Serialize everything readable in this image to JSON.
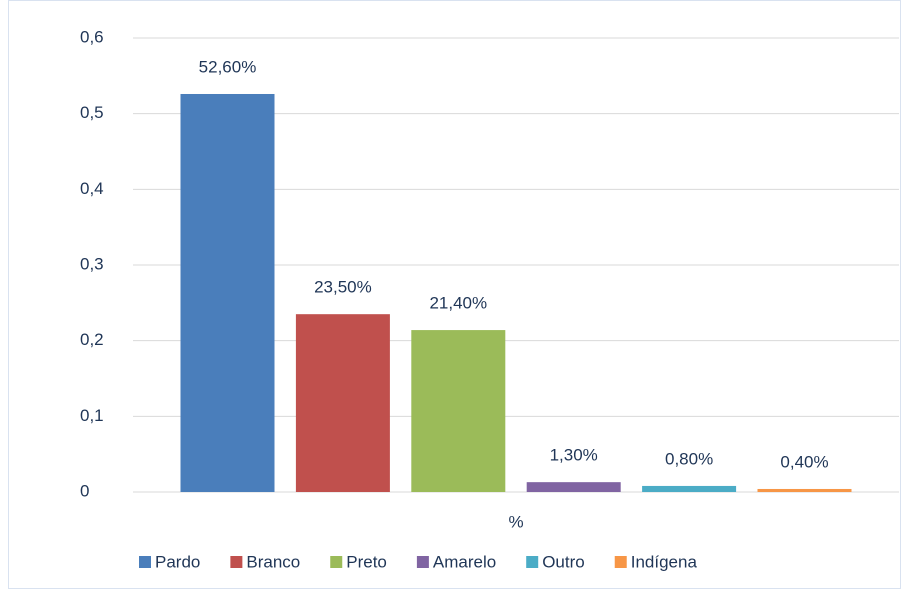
{
  "chart_data": {
    "type": "bar",
    "x_label": "%",
    "categories": [
      "%"
    ],
    "series": [
      {
        "name": "Pardo",
        "color": "#4a7ebb",
        "values": [
          0.526
        ],
        "value_labels": [
          "52,60%"
        ]
      },
      {
        "name": "Branco",
        "color": "#c0504d",
        "values": [
          0.235
        ],
        "value_labels": [
          "23,50%"
        ]
      },
      {
        "name": "Preto",
        "color": "#9bbb59",
        "values": [
          0.214
        ],
        "value_labels": [
          "21,40%"
        ]
      },
      {
        "name": "Amarelo",
        "color": "#8064a2",
        "values": [
          0.013
        ],
        "value_labels": [
          "1,30%"
        ]
      },
      {
        "name": "Outro",
        "color": "#4bacc6",
        "values": [
          0.008
        ],
        "value_labels": [
          "0,80%"
        ]
      },
      {
        "name": "Indígena",
        "color": "#f79646",
        "values": [
          0.004
        ],
        "value_labels": [
          "0,40%"
        ]
      }
    ],
    "ylim": [
      0,
      0.6
    ],
    "yticks": [
      0,
      {
        "value": 0.1,
        "label": "0,1"
      },
      {
        "value": 0.2,
        "label": "0,2"
      },
      {
        "value": 0.3,
        "label": "0,3"
      },
      {
        "value": 0.4,
        "label": "0,4"
      },
      {
        "value": 0.5,
        "label": "0,5"
      },
      {
        "value": 0.6,
        "label": "0,6"
      }
    ],
    "grid": true,
    "legend": "bottom"
  }
}
